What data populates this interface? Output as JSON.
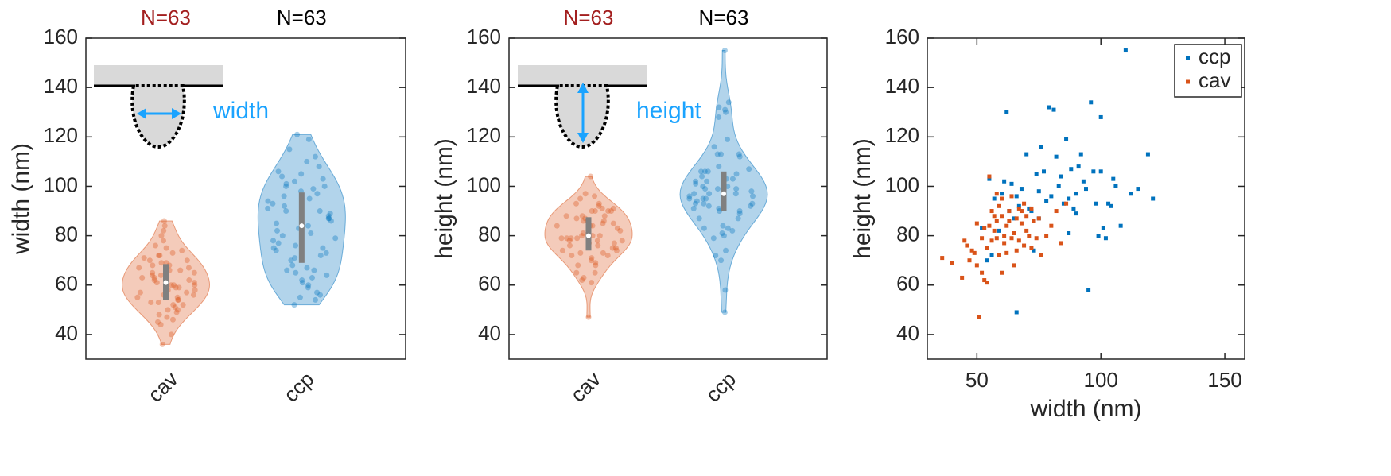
{
  "chart_data": [
    {
      "type": "violin",
      "categories": [
        "cav",
        "ccp"
      ],
      "colors": [
        "#d95319",
        "#0072bd"
      ],
      "values": [
        [
          36,
          40,
          44,
          45,
          46,
          47,
          48,
          49,
          50,
          50,
          51,
          52,
          52,
          53,
          53,
          54,
          54,
          55,
          55,
          56,
          56,
          57,
          57,
          58,
          58,
          59,
          59,
          60,
          60,
          61,
          61,
          62,
          62,
          63,
          63,
          64,
          64,
          65,
          65,
          66,
          66,
          67,
          67,
          68,
          68,
          69,
          69,
          70,
          70,
          71,
          72,
          72,
          73,
          74,
          75,
          76,
          78,
          80,
          82,
          84,
          86,
          58,
          60
        ],
        [
          52,
          54,
          55,
          57,
          59,
          60,
          61,
          62,
          63,
          64,
          65,
          66,
          66,
          67,
          68,
          70,
          71,
          72,
          73,
          74,
          75,
          75,
          76,
          77,
          78,
          79,
          80,
          81,
          82,
          83,
          84,
          85,
          86,
          87,
          87,
          88,
          89,
          90,
          90,
          91,
          92,
          93,
          94,
          95,
          96,
          97,
          98,
          99,
          100,
          100,
          101,
          102,
          103,
          104,
          105,
          106,
          108,
          110,
          112,
          115,
          119,
          121,
          56
        ]
      ],
      "ylabel": "width (nm)",
      "ylim": [
        30,
        160
      ],
      "yticks": [
        40,
        60,
        80,
        100,
        120,
        140,
        160
      ],
      "annotations": [
        "N=63",
        "N=63"
      ],
      "annotation_colors": [
        "#a31f1f",
        "#000000"
      ],
      "inset_label": "width",
      "inset_color": "#1aa3ff"
    },
    {
      "type": "violin",
      "categories": [
        "cav",
        "ccp"
      ],
      "colors": [
        "#d95319",
        "#0072bd"
      ],
      "values": [
        [
          71,
          69,
          63,
          78,
          76,
          70,
          74,
          73,
          68,
          85,
          47,
          65,
          79,
          83,
          62,
          61,
          75,
          84,
          104,
          90,
          78,
          82,
          88,
          86,
          79,
          92,
          72,
          88,
          95,
          80,
          77,
          84,
          73,
          90,
          86,
          79,
          96,
          81,
          68,
          87,
          74,
          91,
          78,
          85,
          90,
          93,
          76,
          88,
          82,
          80,
          91,
          75,
          86,
          79,
          87,
          72,
          80,
          84,
          90,
          77,
          93,
          97,
          65
        ],
        [
          83,
          70,
          103,
          95,
          82,
          97,
          102,
          130,
          90,
          101,
          87,
          49,
          96,
          92,
          99,
          113,
          91,
          90,
          74,
          105,
          98,
          87,
          116,
          106,
          94,
          132,
          96,
          131,
          112,
          100,
          104,
          93,
          119,
          95,
          81,
          107,
          91,
          97,
          89,
          108,
          113,
          102,
          99,
          58,
          134,
          106,
          93,
          80,
          128,
          106,
          83,
          79,
          93,
          92,
          103,
          100,
          84,
          155,
          97,
          99,
          113,
          95,
          72
        ]
      ],
      "ylabel": "height (nm)",
      "ylim": [
        30,
        160
      ],
      "yticks": [
        40,
        60,
        80,
        100,
        120,
        140,
        160
      ],
      "annotations": [
        "N=63",
        "N=63"
      ],
      "annotation_colors": [
        "#a31f1f",
        "#000000"
      ],
      "inset_label": "height",
      "inset_color": "#1aa3ff"
    },
    {
      "type": "scatter",
      "xlabel": "width (nm)",
      "ylabel": "height (nm)",
      "xlim": [
        30,
        158
      ],
      "xticks": [
        50,
        100,
        150
      ],
      "ylim": [
        30,
        160
      ],
      "yticks": [
        40,
        60,
        80,
        100,
        120,
        140,
        160
      ],
      "legend": "top-right",
      "series": [
        {
          "name": "ccp",
          "color": "#0072bd",
          "x": [
            52,
            54,
            55,
            57,
            59,
            60,
            61,
            62,
            63,
            64,
            65,
            66,
            66,
            67,
            68,
            70,
            71,
            72,
            73,
            74,
            75,
            75,
            76,
            77,
            78,
            79,
            80,
            81,
            82,
            83,
            84,
            85,
            86,
            87,
            87,
            88,
            89,
            90,
            90,
            91,
            92,
            93,
            94,
            95,
            96,
            97,
            98,
            99,
            100,
            100,
            101,
            102,
            103,
            104,
            105,
            106,
            108,
            110,
            112,
            115,
            119,
            121,
            56
          ],
          "y": [
            83,
            70,
            103,
            95,
            82,
            97,
            102,
            130,
            90,
            101,
            87,
            49,
            96,
            92,
            99,
            113,
            91,
            90,
            74,
            105,
            98,
            87,
            116,
            106,
            94,
            132,
            96,
            131,
            112,
            100,
            104,
            93,
            119,
            95,
            81,
            107,
            91,
            97,
            89,
            108,
            113,
            102,
            99,
            58,
            134,
            106,
            93,
            80,
            128,
            106,
            83,
            79,
            93,
            92,
            103,
            100,
            84,
            155,
            97,
            99,
            113,
            95,
            72
          ]
        },
        {
          "name": "cav",
          "color": "#d95319",
          "x": [
            36,
            40,
            44,
            45,
            46,
            47,
            48,
            49,
            50,
            50,
            51,
            52,
            52,
            53,
            53,
            54,
            54,
            55,
            55,
            56,
            56,
            57,
            57,
            58,
            58,
            59,
            59,
            60,
            60,
            61,
            61,
            62,
            62,
            63,
            63,
            64,
            64,
            65,
            65,
            66,
            66,
            67,
            67,
            68,
            68,
            69,
            69,
            70,
            70,
            71,
            72,
            72,
            73,
            74,
            75,
            76,
            78,
            80,
            82,
            84,
            86,
            58,
            60
          ],
          "y": [
            71,
            69,
            63,
            78,
            76,
            70,
            74,
            73,
            68,
            85,
            47,
            65,
            79,
            83,
            62,
            61,
            75,
            84,
            104,
            90,
            78,
            82,
            88,
            86,
            79,
            92,
            72,
            88,
            95,
            80,
            77,
            84,
            73,
            90,
            86,
            79,
            96,
            81,
            68,
            87,
            74,
            91,
            78,
            85,
            90,
            93,
            76,
            88,
            82,
            80,
            91,
            75,
            86,
            79,
            87,
            72,
            80,
            84,
            90,
            77,
            93,
            97,
            65
          ]
        }
      ]
    }
  ]
}
